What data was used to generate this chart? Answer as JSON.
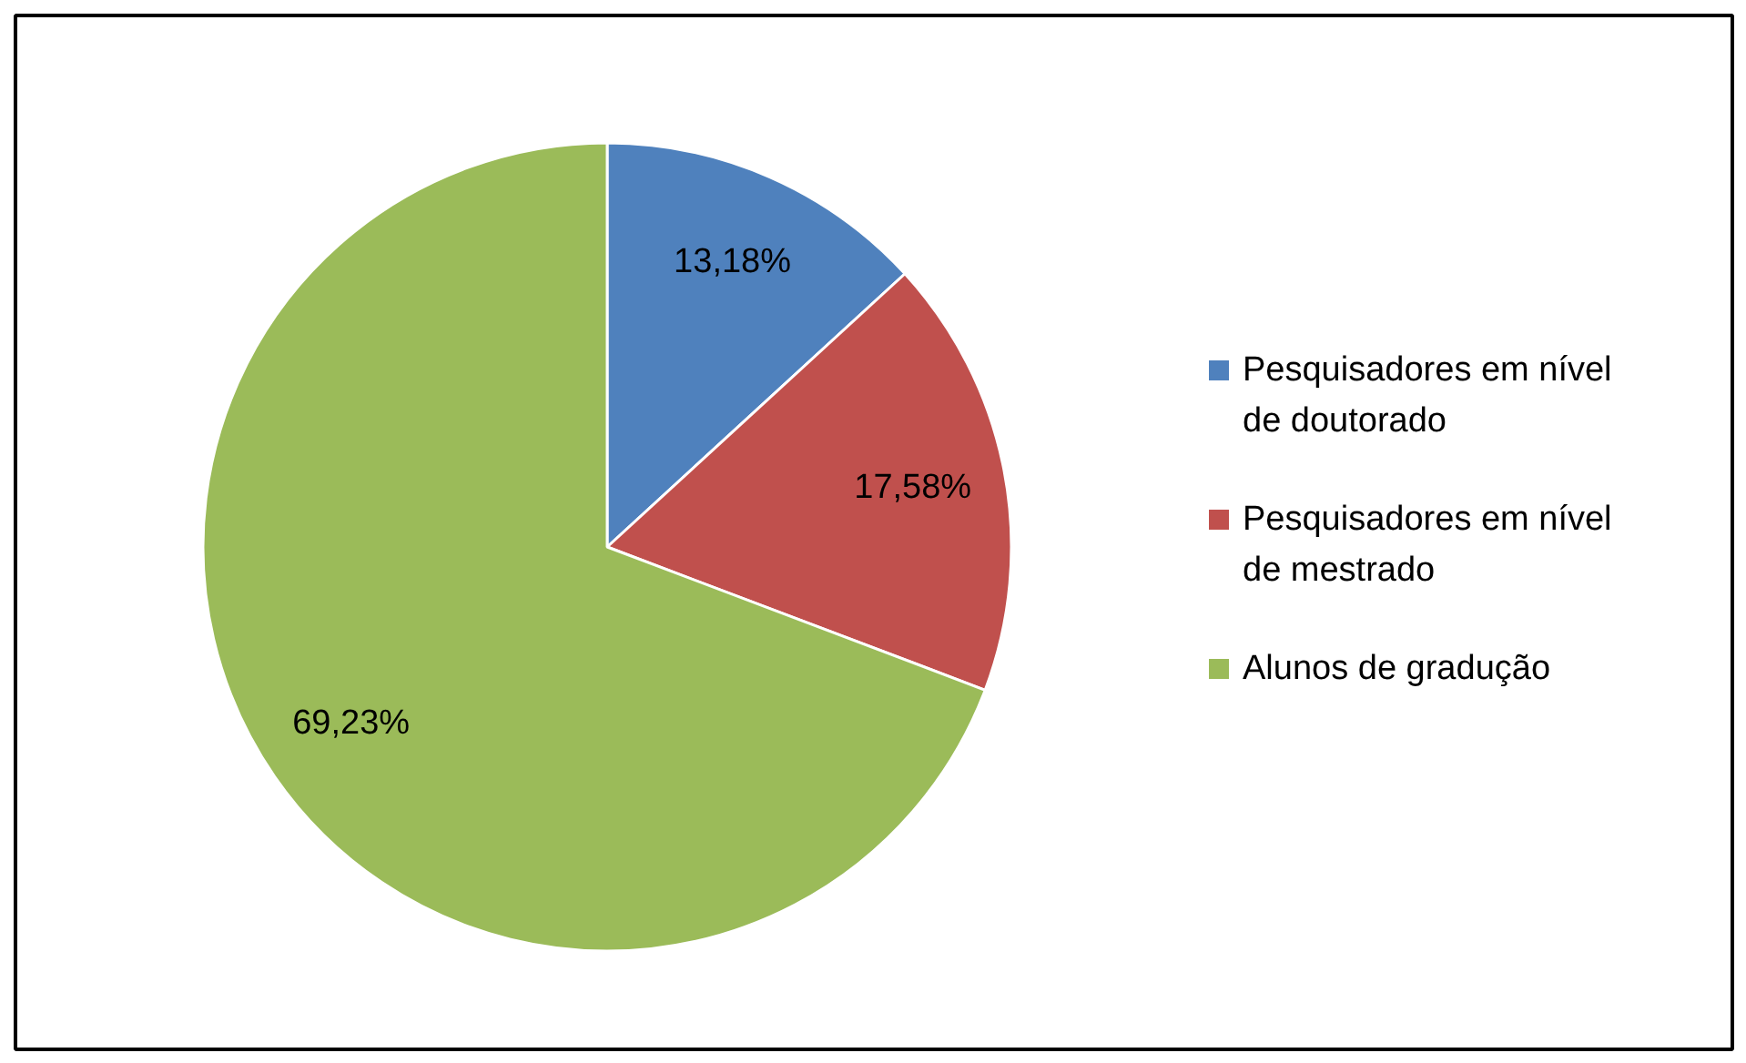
{
  "chart_data": {
    "type": "pie",
    "categories": [
      "Pesquisadores em nível de doutorado",
      "Pesquisadores em nível de mestrado",
      "Alunos de gradução"
    ],
    "values": [
      13.18,
      17.58,
      69.23
    ],
    "colors": [
      "#4f81bd",
      "#c0504d",
      "#9bbb59"
    ],
    "value_labels": [
      "13,18%",
      "17,58%",
      "69,23%"
    ],
    "legend": "right"
  }
}
